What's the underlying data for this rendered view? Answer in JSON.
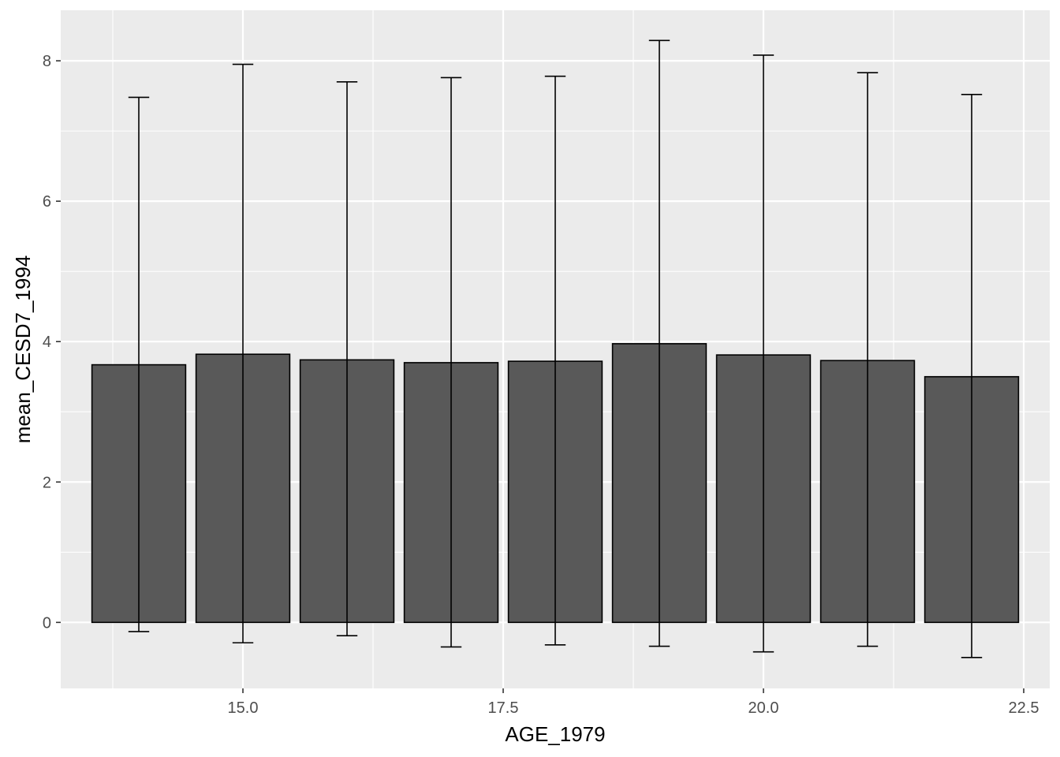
{
  "chart_data": {
    "type": "bar",
    "xlabel": "AGE_1979",
    "ylabel": "mean_CESD7_1994",
    "x": [
      14,
      15,
      16,
      17,
      18,
      19,
      20,
      21,
      22
    ],
    "values": [
      3.67,
      3.82,
      3.74,
      3.7,
      3.72,
      3.97,
      3.81,
      3.73,
      3.5
    ],
    "error_low": [
      -0.13,
      -0.29,
      -0.19,
      -0.35,
      -0.32,
      -0.34,
      -0.42,
      -0.34,
      -0.5
    ],
    "error_high": [
      7.48,
      7.95,
      7.7,
      7.76,
      7.78,
      8.29,
      8.08,
      7.83,
      7.52
    ],
    "xlim": [
      13.25,
      22.75
    ],
    "ylim": [
      -0.94,
      8.72
    ],
    "x_ticks": [
      15.0,
      17.5,
      20.0,
      22.5
    ],
    "x_tick_labels": [
      "15.0",
      "17.5",
      "20.0",
      "22.5"
    ],
    "y_ticks": [
      0,
      2,
      4,
      6,
      8
    ],
    "y_tick_labels": [
      "0",
      "2",
      "4",
      "6",
      "8"
    ],
    "grid": true,
    "colors": {
      "panel_background": "#ebebeb",
      "grid_major": "#ffffff",
      "bar_fill": "#595959",
      "bar_outline": "#000000",
      "errorbar": "#000000"
    }
  }
}
